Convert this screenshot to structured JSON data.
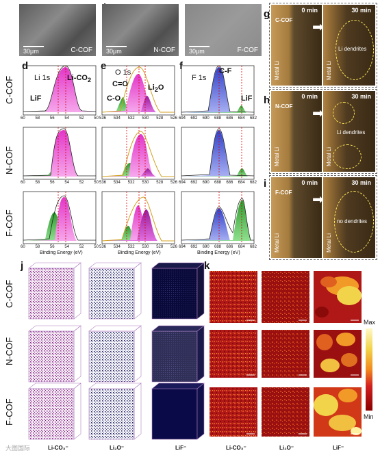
{
  "panels": {
    "a": "a",
    "b": "b",
    "c": "c",
    "d": "d",
    "e": "e",
    "f": "f",
    "g": "g",
    "h": "h",
    "i": "i",
    "j": "j",
    "k": "k"
  },
  "sem": {
    "scale": "30μm",
    "items": [
      "C-COF",
      "N-COF",
      "F-COF"
    ]
  },
  "row_labels": [
    "C-COF",
    "N-COF",
    "F-COF"
  ],
  "xps": {
    "xlabel": "Binding Energy (eV)",
    "d": {
      "title": "Li 1s",
      "peak1": "Li-CO",
      "peak1_sub": "2",
      "peak2": "LiF",
      "ticks": [
        "60",
        "58",
        "56",
        "54",
        "52",
        "50"
      ]
    },
    "e": {
      "title": "O 1s",
      "peak1": "C=O",
      "peak2": "C-O",
      "peak3": "Li",
      "peak3_sub": "2",
      "peak3_end": "O",
      "ticks": [
        "536",
        "534",
        "532",
        "530",
        "528",
        "526"
      ],
      "ticks_bottom": [
        "536",
        "534",
        "532",
        "530",
        "528",
        "526"
      ]
    },
    "f": {
      "title": "F 1s",
      "peak1": "C-F",
      "peak2": "LiF",
      "ticks": [
        "694",
        "692",
        "690",
        "688",
        "686",
        "684",
        "682"
      ]
    }
  },
  "optical": {
    "times": [
      "0 min",
      "30 min"
    ],
    "metal": "Metal Li",
    "rows": [
      {
        "name": "C-COF",
        "note": "Li dendrites"
      },
      {
        "name": "N-COF",
        "note": "Li dendrites"
      },
      {
        "name": "F-COF",
        "note": "no dendrites"
      }
    ]
  },
  "tof": {
    "row_labels": [
      "C-COF",
      "N-COF",
      "F-COF"
    ],
    "species": [
      "Li-CO₃⁻",
      "Li₂O⁻",
      "LiF⁻"
    ],
    "species_k": [
      "Li-CO₃⁻",
      "Li₂O⁻",
      "LiF⁻"
    ],
    "cbar_max": "Max",
    "cbar_min": "Min",
    "watermark": "大图国际"
  }
}
